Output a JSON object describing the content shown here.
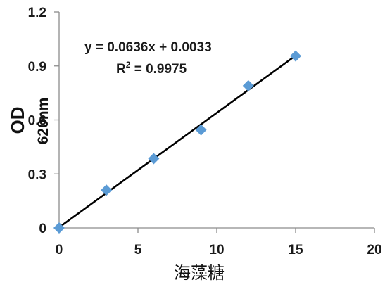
{
  "chart_data": {
    "type": "scatter",
    "title": "",
    "xlabel": "海藻糖",
    "ylabel": "OD",
    "ylabel_sub": "620nm",
    "xlim": [
      0,
      20
    ],
    "ylim": [
      0,
      1.2
    ],
    "x_ticks": [
      0,
      5,
      10,
      15,
      20
    ],
    "y_ticks": [
      0,
      0.3,
      0.6,
      0.9,
      1.2
    ],
    "x_tick_labels": [
      "0",
      "5",
      "10",
      "15",
      "20"
    ],
    "y_tick_labels": [
      "0",
      "0.3",
      "0.6",
      "0.9",
      "1.2"
    ],
    "grid": false,
    "legend": "none",
    "marker_color": "#5B9BD5",
    "line_color": "#000000",
    "series": [
      {
        "x": [
          0,
          3,
          6,
          9,
          12,
          15
        ],
        "y": [
          0.0,
          0.21,
          0.385,
          0.545,
          0.79,
          0.955
        ]
      }
    ],
    "trendline": {
      "slope": 0.0636,
      "intercept": 0.0033,
      "x_range": [
        0,
        15
      ]
    },
    "equation": "y = 0.0636x + 0.0033",
    "r2_prefix": "R",
    "r2_sup": "2",
    "r2_value": " = 0.9975"
  }
}
